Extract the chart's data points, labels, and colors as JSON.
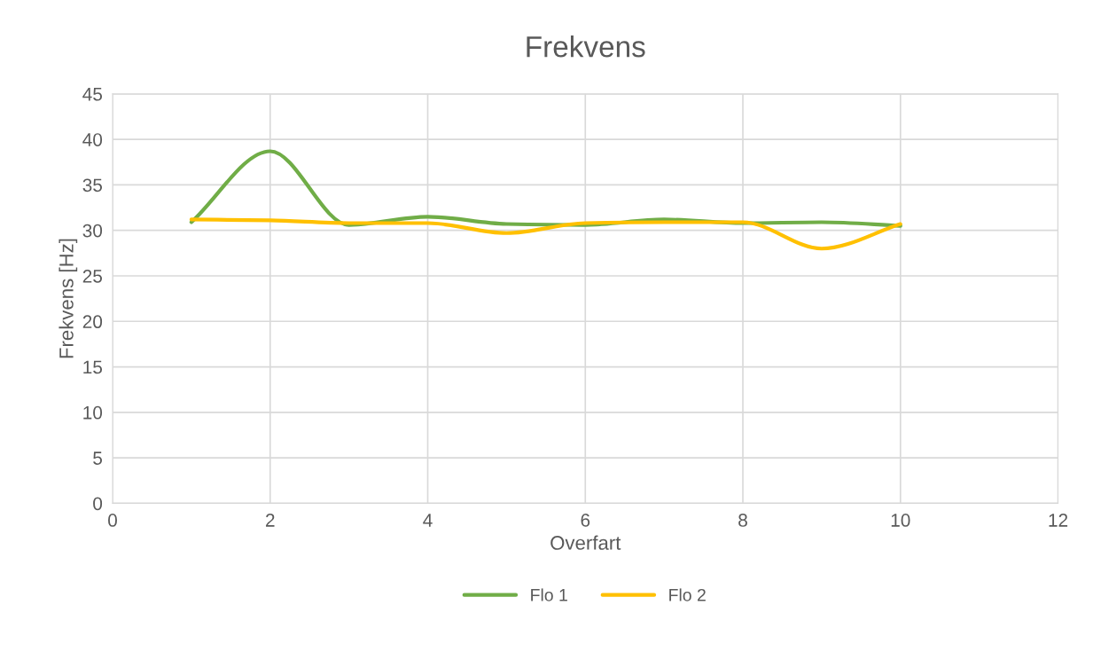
{
  "chart_data": {
    "type": "line",
    "title": "Frekvens",
    "xlabel": "Overfart",
    "ylabel": "Frekvens [Hz]",
    "x": [
      1,
      2,
      3,
      4,
      5,
      6,
      7,
      8,
      9,
      10
    ],
    "series": [
      {
        "name": "Flo 1",
        "color": "#70ad47",
        "values": [
          30.9,
          38.7,
          30.6,
          31.5,
          30.7,
          30.6,
          31.2,
          30.8,
          30.9,
          30.5
        ]
      },
      {
        "name": "Flo 2",
        "color": "#ffc000",
        "values": [
          31.2,
          31.1,
          30.8,
          30.8,
          29.7,
          30.8,
          30.9,
          30.9,
          28.0,
          30.7
        ]
      }
    ],
    "xlim": [
      0,
      12
    ],
    "xticks": [
      0,
      2,
      4,
      6,
      8,
      10,
      12
    ],
    "ylim": [
      0,
      45
    ],
    "yticks": [
      0,
      5,
      10,
      15,
      20,
      25,
      30,
      35,
      40,
      45
    ],
    "grid": true,
    "legend": "bottom",
    "line_style": "solid"
  }
}
